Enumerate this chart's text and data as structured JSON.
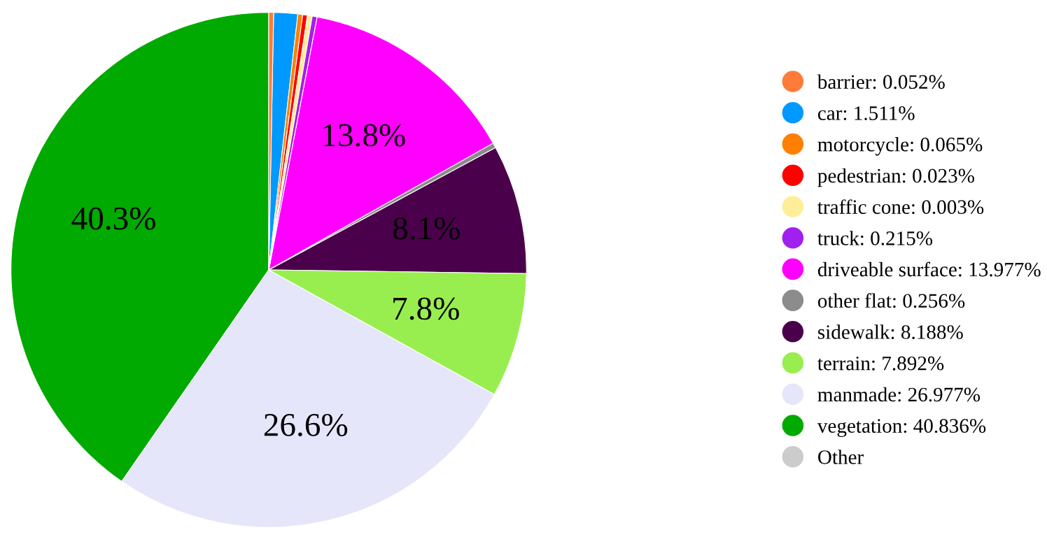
{
  "chart_data": {
    "type": "pie",
    "categories": [
      "barrier: 0.052%",
      "car: 1.511%",
      "motorcycle: 0.065%",
      "pedestrian: 0.023%",
      "traffic cone: 0.003%",
      "truck: 0.215%",
      "driveable surface: 13.977%",
      "other flat: 0.256%",
      "sidewalk: 8.188%",
      "terrain: 7.892%",
      "manmade: 26.977%",
      "vegetation: 40.836%",
      "Other"
    ],
    "values": [
      0.3,
      1.5,
      0.3,
      0.3,
      0.3,
      0.3,
      13.8,
      0.3,
      8.1,
      7.8,
      26.6,
      40.3,
      null
    ],
    "value_labels": [
      null,
      null,
      null,
      null,
      null,
      null,
      "13.8%",
      null,
      "8.1%",
      "7.8%",
      "26.6%",
      "40.3%",
      null
    ],
    "colors": [
      "#ff7b3a",
      "#0099ff",
      "#ff8000",
      "#ff0000",
      "#ffee99",
      "#a020f0",
      "#ff00ff",
      "#8c8c8c",
      "#4b004b",
      "#99ee4f",
      "#e6e6fa",
      "#00aa00",
      "#cccccc"
    ],
    "legend": "right"
  }
}
